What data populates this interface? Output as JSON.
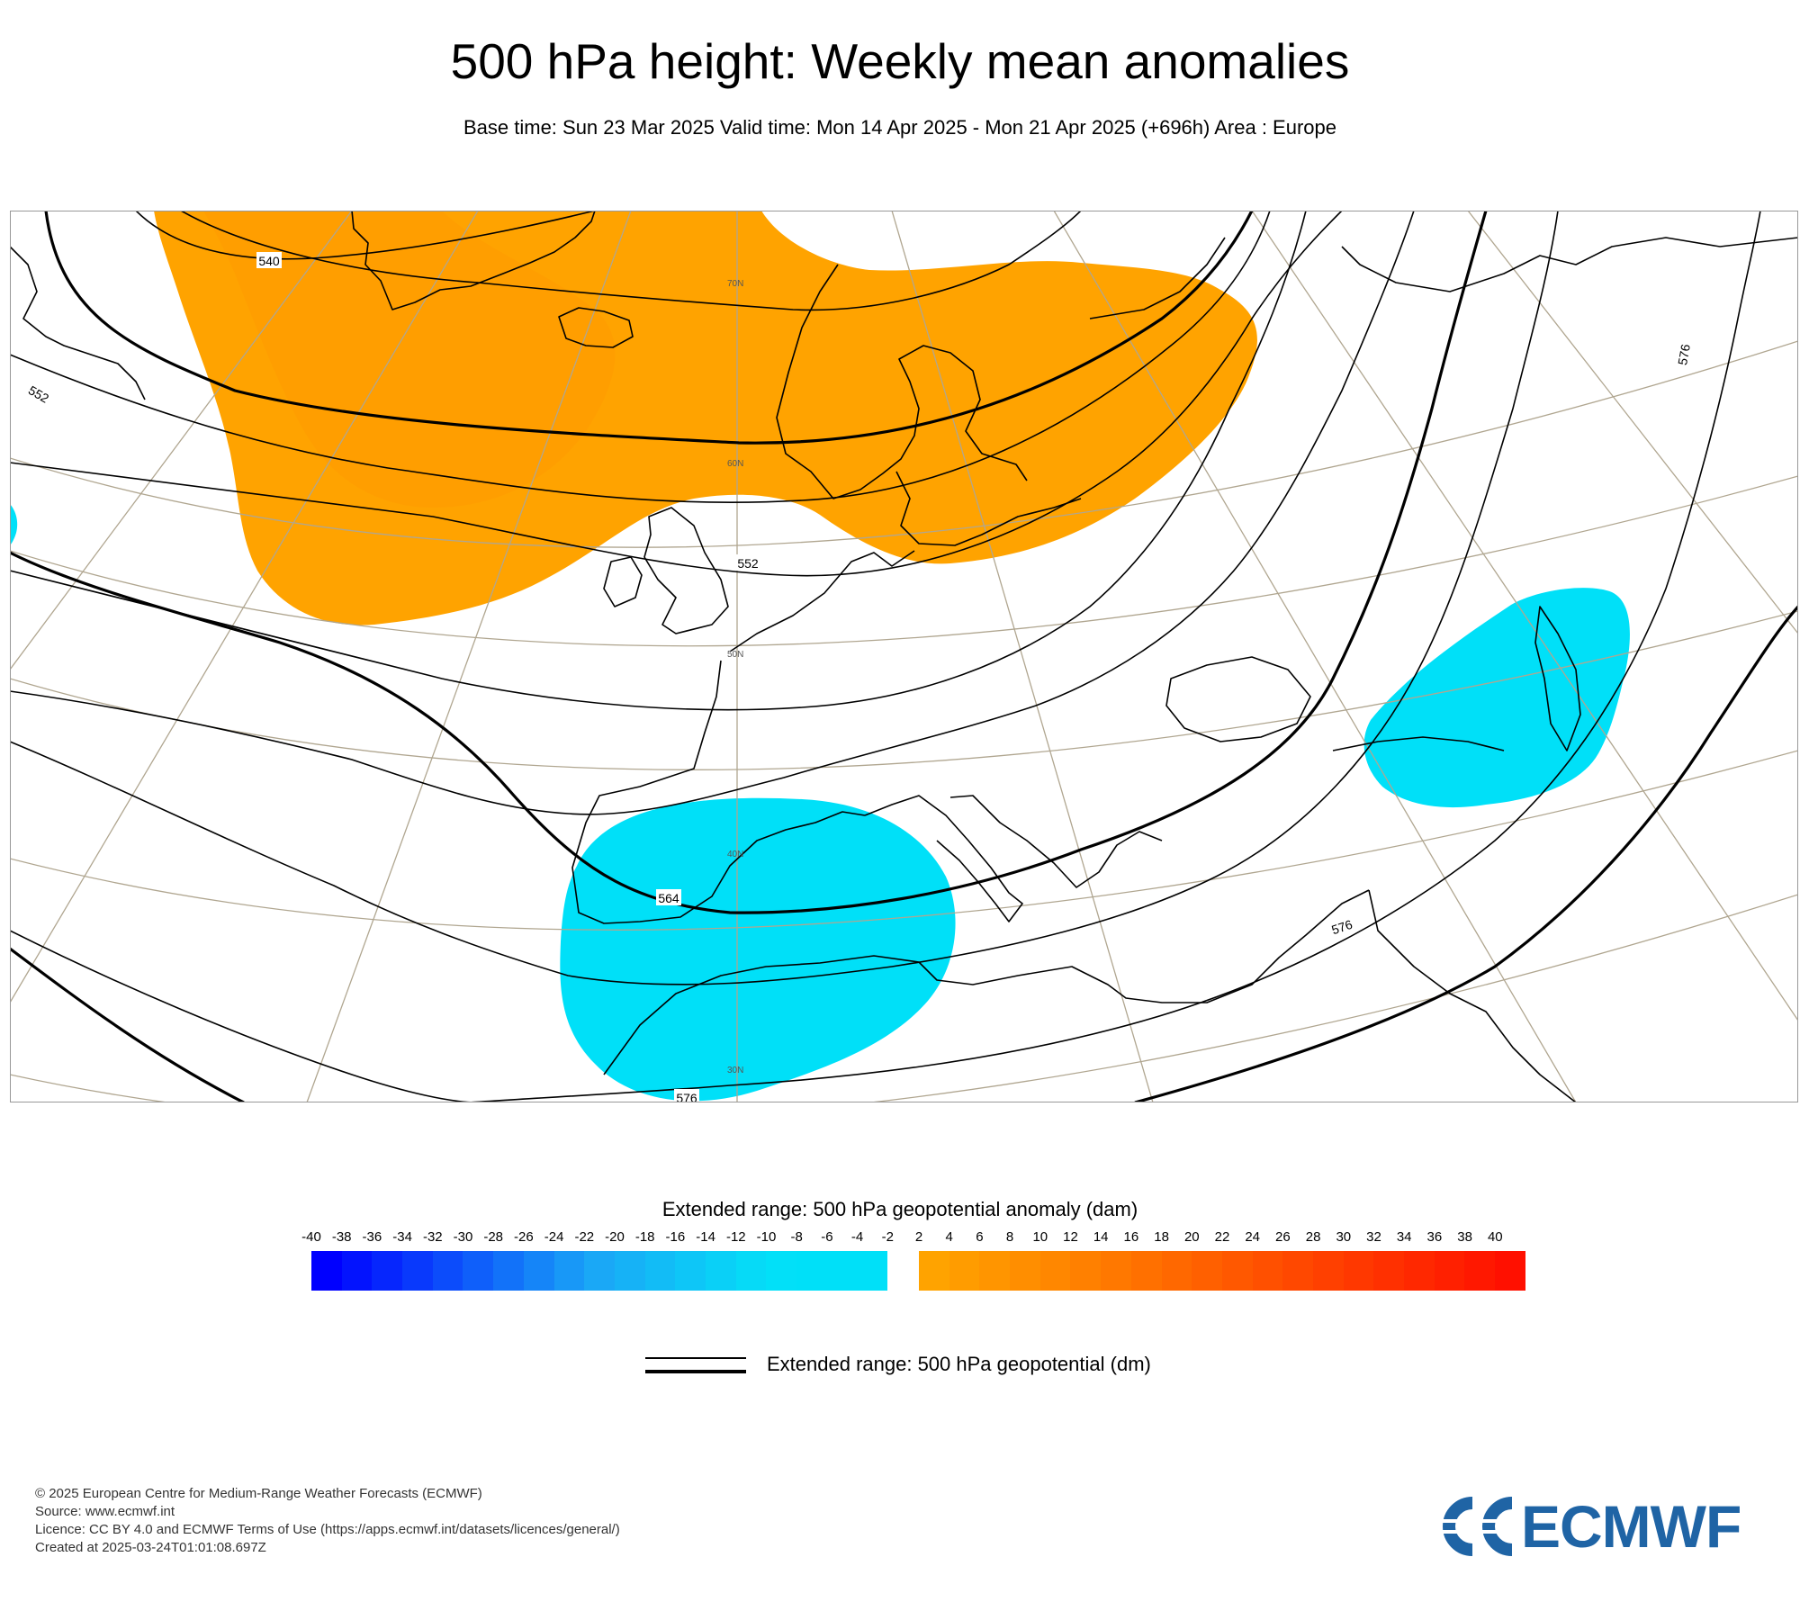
{
  "header": {
    "title": "500 hPa height: Weekly mean anomalies",
    "subtitle": "Base time: Sun 23 Mar 2025 Valid time: Mon 14 Apr 2025 - Mon 21 Apr 2025 (+696h) Area : Europe"
  },
  "map": {
    "area": "Europe",
    "contour_labels": [
      "540",
      "552",
      "552",
      "564",
      "576",
      "576",
      "576"
    ],
    "latitude_labels": [
      "70N",
      "60N",
      "50N",
      "40N",
      "30N"
    ],
    "colors": {
      "positive_anomaly": "#ffa300",
      "negative_anomaly": "#00e0f8",
      "contour": "#000000",
      "graticule": "#b0a690",
      "coastline": "#000000"
    },
    "anomaly_regions": [
      {
        "sign": "positive",
        "level": "2 to 4",
        "area": "North Atlantic, Greenland, Iceland, Scandinavia, Baltic"
      },
      {
        "sign": "positive",
        "level": "4 to 6",
        "area": "Between Greenland and Iceland"
      },
      {
        "sign": "negative",
        "level": "-4 to -2",
        "area": "Iberia and North Africa"
      },
      {
        "sign": "negative",
        "level": "-4 to -2",
        "area": "Black Sea, Caucasus and Caspian region"
      },
      {
        "sign": "negative",
        "level": "-4 to -2",
        "area": "Western edge of the North Atlantic"
      }
    ]
  },
  "chart_data": {
    "type": "heatmap",
    "title": "500 hPa height: Weekly mean anomalies",
    "colorbar": {
      "title": "Extended range: 500 hPa geopotential anomaly (dam)",
      "ticks": [
        "-40",
        "-38",
        "-36",
        "-34",
        "-32",
        "-30",
        "-28",
        "-26",
        "-24",
        "-22",
        "-20",
        "-18",
        "-16",
        "-14",
        "-12",
        "-10",
        "-8",
        "-6",
        "-4",
        "-2",
        "2",
        "4",
        "6",
        "8",
        "10",
        "12",
        "14",
        "16",
        "18",
        "20",
        "22",
        "24",
        "26",
        "28",
        "30",
        "32",
        "34",
        "36",
        "38",
        "40"
      ],
      "negative_colors": [
        "#0000ff",
        "#0313fe",
        "#0626fd",
        "#0939fc",
        "#0c4cfb",
        "#0f5ffa",
        "#1272f9",
        "#1585f8",
        "#1898f7",
        "#1aa8f6",
        "#16b2f6",
        "#12bcf6",
        "#0ec6f7",
        "#0ad0f7",
        "#06daf7",
        "#02e0f8",
        "#00e0f8",
        "#00e0f8",
        "#00e0f8"
      ],
      "positive_colors": [
        "#ffa300",
        "#ff9c00",
        "#ff9500",
        "#ff8e00",
        "#ff8700",
        "#ff8000",
        "#ff7800",
        "#ff7000",
        "#ff6800",
        "#ff6000",
        "#ff5800",
        "#ff5000",
        "#ff4800",
        "#ff4000",
        "#ff3800",
        "#ff3000",
        "#ff2800",
        "#ff2000",
        "#ff1800",
        "#ff1000"
      ]
    },
    "contour_legend": "Extended range: 500 hPa geopotential (dm)",
    "contour_levels_dm": [
      540,
      552,
      564,
      576
    ]
  },
  "footer": {
    "copyright": "© 2025 European Centre for Medium-Range Weather Forecasts (ECMWF)",
    "source": "Source: www.ecmwf.int",
    "licence": "Licence: CC BY 4.0 and ECMWF Terms of Use (https://apps.ecmwf.int/datasets/licences/general/)",
    "created": "Created at 2025-03-24T01:01:08.697Z"
  },
  "logo": {
    "text": "ECMWF",
    "color": "#1f64a5"
  }
}
